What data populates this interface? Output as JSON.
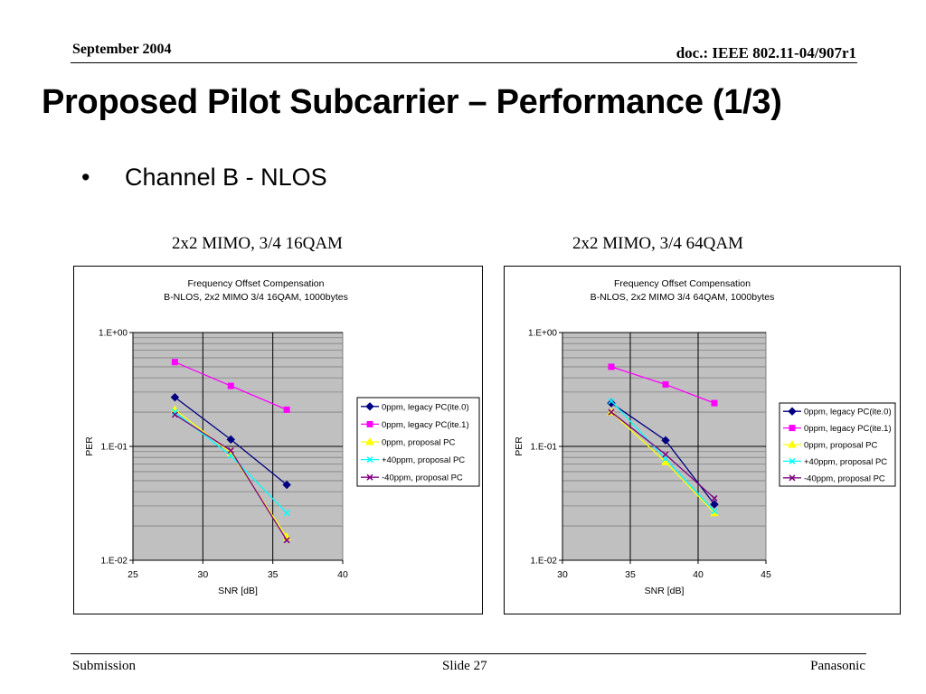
{
  "header": {
    "date": "September 2004",
    "doc": "doc.: IEEE 802.11-04/907r1"
  },
  "title": "Proposed Pilot Subcarrier – Performance (1/3)",
  "bullet": {
    "symbol": "•",
    "text": "Channel B - NLOS"
  },
  "footer": {
    "left": "Submission",
    "center": "Slide 27",
    "right": "Panasonic"
  },
  "colors": {
    "plot_bg": "#c0c0c0",
    "grid": "#808080",
    "grid_major": "#000000"
  },
  "chart_data": [
    {
      "caption": "2x2 MIMO, 3/4 16QAM",
      "type": "line",
      "title": "Frequency Offset Compensation",
      "subtitle": "B-NLOS, 2x2 MIMO 3/4 16QAM, 1000bytes",
      "xlabel": "SNR [dB]",
      "ylabel": "PER",
      "xlim": [
        25,
        40
      ],
      "xticks": [
        25,
        30,
        35,
        40
      ],
      "ylim": [
        0.01,
        1
      ],
      "yscale": "log",
      "yticks": [
        {
          "value": 1,
          "label": "1.E+00"
        },
        {
          "value": 0.1,
          "label": "1.E-01"
        },
        {
          "value": 0.01,
          "label": "1.E-02"
        }
      ],
      "grid": true,
      "legend_position": "right",
      "series": [
        {
          "name": "0ppm, legacy PC(ite.0)",
          "color": "#000080",
          "marker": "diamond",
          "x": [
            28,
            32,
            36
          ],
          "y": [
            0.27,
            0.115,
            0.046
          ]
        },
        {
          "name": "0ppm, legacy PC(ite.1)",
          "color": "#ff00ff",
          "marker": "square",
          "x": [
            28,
            32,
            36
          ],
          "y": [
            0.55,
            0.34,
            0.21
          ]
        },
        {
          "name": "0ppm, proposal PC",
          "color": "#ffff00",
          "marker": "triangle",
          "x": [
            28,
            32,
            36
          ],
          "y": [
            0.21,
            0.088,
            0.016
          ]
        },
        {
          "name": "+40ppm, proposal PC",
          "color": "#00ffff",
          "marker": "x",
          "x": [
            28,
            32,
            36
          ],
          "y": [
            0.2,
            0.083,
            0.026
          ]
        },
        {
          "name": "-40ppm, proposal PC",
          "color": "#800080",
          "marker": "x",
          "x": [
            28,
            32,
            36
          ],
          "y": [
            0.19,
            0.092,
            0.015
          ]
        }
      ]
    },
    {
      "caption": "2x2 MIMO, 3/4 64QAM",
      "type": "line",
      "title": "Frequency Offset Compensation",
      "subtitle": "B-NLOS, 2x2 MIMO 3/4 64QAM, 1000bytes",
      "xlabel": "SNR [dB]",
      "ylabel": "PER",
      "xlim": [
        30,
        45
      ],
      "xticks": [
        30,
        35,
        40,
        45
      ],
      "ylim": [
        0.01,
        1
      ],
      "yscale": "log",
      "yticks": [
        {
          "value": 1,
          "label": "1.E+00"
        },
        {
          "value": 0.1,
          "label": "1.E-01"
        },
        {
          "value": 0.01,
          "label": "1.E-02"
        }
      ],
      "grid": true,
      "legend_position": "right",
      "series": [
        {
          "name": "0ppm, legacy PC(ite.0)",
          "color": "#000080",
          "marker": "diamond",
          "x": [
            33.6,
            37.6,
            41.2
          ],
          "y": [
            0.24,
            0.113,
            0.031
          ]
        },
        {
          "name": "0ppm, legacy PC(ite.1)",
          "color": "#ff00ff",
          "marker": "square",
          "x": [
            33.6,
            37.6,
            41.2
          ],
          "y": [
            0.5,
            0.35,
            0.24
          ]
        },
        {
          "name": "0ppm, proposal PC",
          "color": "#ffff00",
          "marker": "triangle",
          "x": [
            33.6,
            37.6,
            41.2
          ],
          "y": [
            0.2,
            0.073,
            0.026
          ]
        },
        {
          "name": "+40ppm, proposal PC",
          "color": "#00ffff",
          "marker": "x",
          "x": [
            33.6,
            37.6,
            41.2
          ],
          "y": [
            0.25,
            0.078,
            0.027
          ]
        },
        {
          "name": "-40ppm, proposal PC",
          "color": "#800080",
          "marker": "x",
          "x": [
            33.6,
            37.6,
            41.2
          ],
          "y": [
            0.2,
            0.085,
            0.035
          ]
        }
      ]
    }
  ]
}
